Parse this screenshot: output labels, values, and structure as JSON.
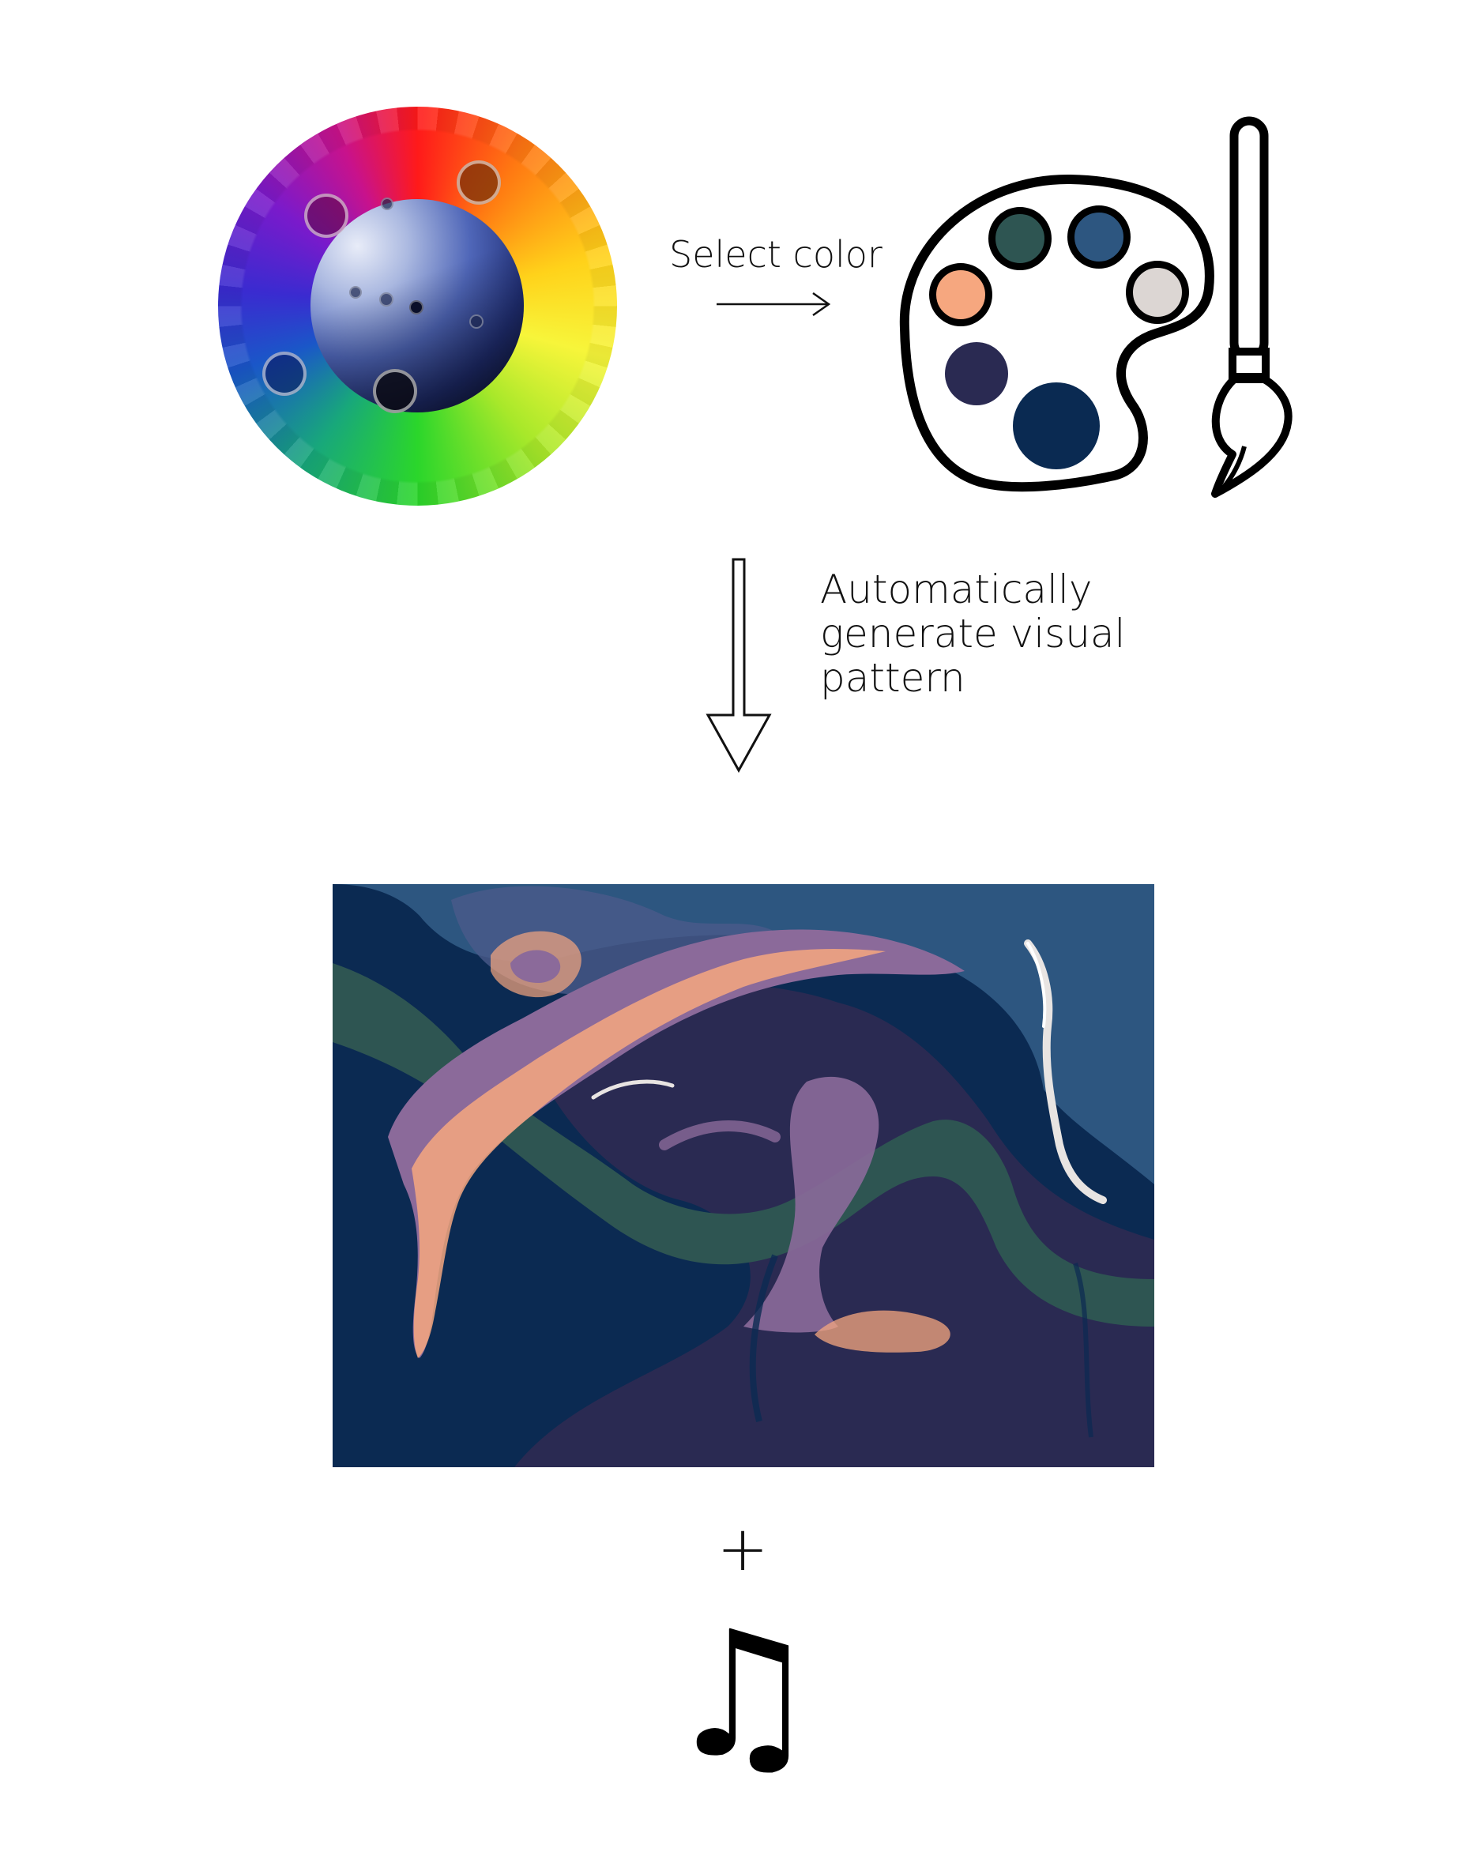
{
  "labels": {
    "select_color": "Select color",
    "generate_line1": "Automatically",
    "generate_line2": "generate visual",
    "generate_line3": "pattern",
    "plus": "+",
    "music": "♫"
  },
  "palette_colors": {
    "dark_green": "#2e5552",
    "steel_blue": "#2d5680",
    "salmon": "#f6a77f",
    "light_gray": "#dcd6d3",
    "dark_purple": "#2a2a52",
    "navy": "#0a2a52"
  },
  "pattern_colors": {
    "background_navy": "#0b2a52",
    "background_purple": "#2a2a52",
    "top_blue": "#2d5680",
    "green": "#2e5552",
    "salmon": "#f6a77f",
    "mauve": "#8b6a9a",
    "light": "#e8e4e2"
  },
  "icons": [
    "color-wheel-icon",
    "palette-icon",
    "paintbrush-icon",
    "arrow-right-icon",
    "arrow-down-icon",
    "plus-icon",
    "music-note-icon"
  ]
}
